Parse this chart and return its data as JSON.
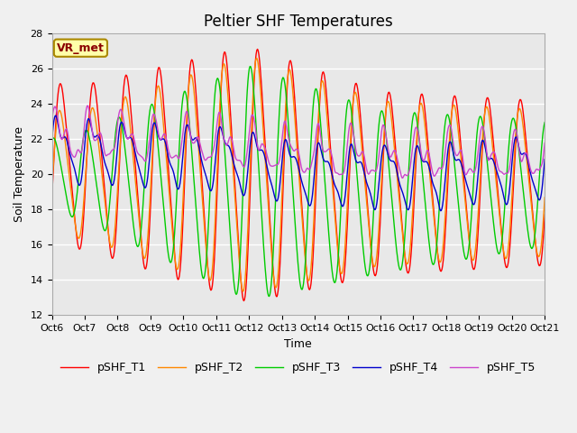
{
  "title": "Peltier SHF Temperatures",
  "ylabel": "Soil Temperature",
  "xlabel": "Time",
  "annotation": "VR_met",
  "ylim": [
    12,
    28
  ],
  "xlim": [
    0,
    15
  ],
  "series_colors": [
    "#ff0000",
    "#ff8800",
    "#00cc00",
    "#0000cc",
    "#cc44cc"
  ],
  "series_labels": [
    "pSHF_T1",
    "pSHF_T2",
    "pSHF_T3",
    "pSHF_T4",
    "pSHF_T5"
  ],
  "tick_labels": [
    "Oct 6",
    "Oct 7",
    "Oct 8",
    "Oct 9",
    "Oct 10",
    "Oct 11",
    "Oct 12",
    "Oct 13",
    "Oct 14",
    "Oct 15",
    "Oct 16",
    "Oct 17",
    "Oct 18",
    "Oct 19",
    "Oct 20",
    "Oct 21"
  ],
  "yticks": [
    12,
    14,
    16,
    18,
    20,
    22,
    24,
    26,
    28
  ],
  "background_color": "#e8e8e8",
  "grid_color": "#ffffff",
  "title_fontsize": 12,
  "label_fontsize": 9,
  "tick_fontsize": 8,
  "legend_fontsize": 9,
  "linewidth": 1.0,
  "fig_width": 6.4,
  "fig_height": 4.8,
  "dpi": 100
}
